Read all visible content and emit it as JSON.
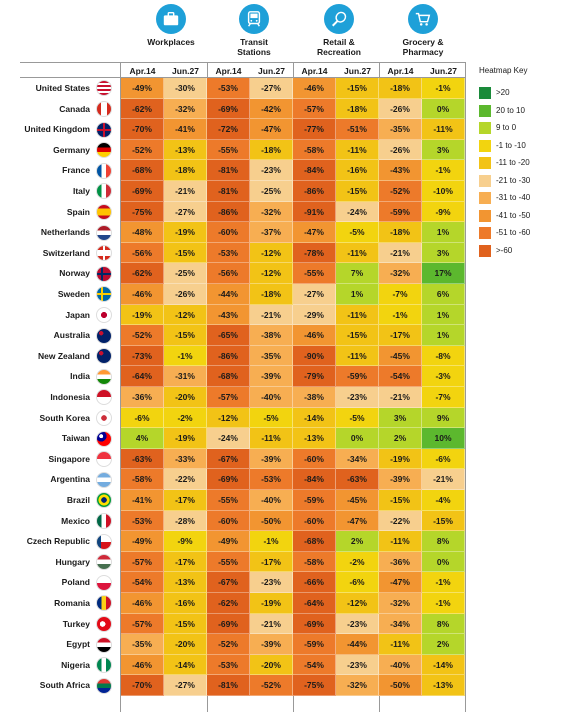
{
  "categories": [
    {
      "label_l1": "Workplaces",
      "label_l2": "",
      "icon": "briefcase-icon"
    },
    {
      "label_l1": "Transit",
      "label_l2": "Stations",
      "icon": "train-icon"
    },
    {
      "label_l1": "Retail &",
      "label_l2": "Recreation",
      "icon": "tennis-racket-icon"
    },
    {
      "label_l1": "Grocery &",
      "label_l2": "Pharmacy",
      "icon": "shopping-cart-icon"
    }
  ],
  "date_labels": [
    "Apr.14",
    "Jun.27"
  ],
  "legend": {
    "title": "Heatmap Key",
    "items": [
      {
        "label": ">20",
        "color": "#1a8a3a"
      },
      {
        "label": "20 to 10",
        "color": "#5cb82e"
      },
      {
        "label": "9 to 0",
        "color": "#b5d62a"
      },
      {
        "label": "-1 to -10",
        "color": "#f2d40f"
      },
      {
        "label": "-11 to -20",
        "color": "#f2c316"
      },
      {
        "label": "-21 to -30",
        "color": "#f7cf8e"
      },
      {
        "label": "-31 to -40",
        "color": "#f7ae52"
      },
      {
        "label": "-41 to -50",
        "color": "#f29531"
      },
      {
        "label": "-51 to -60",
        "color": "#ed7a2a"
      },
      {
        "label": ">-60",
        "color": "#e0621e"
      }
    ]
  },
  "chart_data": {
    "type": "heatmap",
    "columns": [
      "Workplaces Apr.14",
      "Workplaces Jun.27",
      "Transit Stations Apr.14",
      "Transit Stations Jun.27",
      "Retail & Recreation Apr.14",
      "Retail & Recreation Jun.27",
      "Grocery & Pharmacy Apr.14",
      "Grocery & Pharmacy Jun.27"
    ],
    "rows": [
      {
        "country": "United States",
        "flag": "us",
        "values": [
          -49,
          -30,
          -53,
          -27,
          -46,
          -15,
          -18,
          -1
        ]
      },
      {
        "country": "Canada",
        "flag": "ca",
        "values": [
          -62,
          -32,
          -69,
          -42,
          -57,
          -18,
          -26,
          0
        ]
      },
      {
        "country": "United Kingdom",
        "flag": "gb",
        "values": [
          -70,
          -41,
          -72,
          -47,
          -77,
          -51,
          -35,
          -11
        ]
      },
      {
        "country": "Germany",
        "flag": "de",
        "values": [
          -52,
          -13,
          -55,
          -18,
          -58,
          -11,
          -26,
          3
        ]
      },
      {
        "country": "France",
        "flag": "fr",
        "values": [
          -68,
          -18,
          -81,
          -23,
          -84,
          -16,
          -43,
          -1
        ]
      },
      {
        "country": "Italy",
        "flag": "it",
        "values": [
          -69,
          -21,
          -81,
          -25,
          -86,
          -15,
          -52,
          -10
        ]
      },
      {
        "country": "Spain",
        "flag": "es",
        "values": [
          -75,
          -27,
          -86,
          -32,
          -91,
          -24,
          -59,
          -9
        ]
      },
      {
        "country": "Netherlands",
        "flag": "nl",
        "values": [
          -48,
          -19,
          -60,
          -37,
          -47,
          -5,
          -18,
          1
        ]
      },
      {
        "country": "Switzerland",
        "flag": "ch",
        "values": [
          -56,
          -15,
          -53,
          -12,
          -78,
          -11,
          -21,
          3
        ]
      },
      {
        "country": "Norway",
        "flag": "no",
        "values": [
          -62,
          -25,
          -56,
          -12,
          -55,
          7,
          -32,
          17
        ]
      },
      {
        "country": "Sweden",
        "flag": "se",
        "values": [
          -46,
          -26,
          -44,
          -18,
          -27,
          1,
          -7,
          6
        ]
      },
      {
        "country": "Japan",
        "flag": "jp",
        "values": [
          -19,
          -12,
          -43,
          -21,
          -29,
          -11,
          -1,
          1
        ]
      },
      {
        "country": "Australia",
        "flag": "au",
        "values": [
          -52,
          -15,
          -65,
          -38,
          -46,
          -15,
          -17,
          1
        ]
      },
      {
        "country": "New Zealand",
        "flag": "nz",
        "values": [
          -73,
          -1,
          -86,
          -35,
          -90,
          -11,
          -45,
          -8
        ]
      },
      {
        "country": "India",
        "flag": "in",
        "values": [
          -64,
          -31,
          -68,
          -39,
          -79,
          -59,
          -54,
          -3
        ]
      },
      {
        "country": "Indonesia",
        "flag": "id",
        "values": [
          -36,
          -20,
          -57,
          -40,
          -38,
          -23,
          -21,
          -7
        ]
      },
      {
        "country": "South Korea",
        "flag": "kr",
        "values": [
          -6,
          -2,
          -12,
          -5,
          -14,
          -5,
          3,
          9
        ]
      },
      {
        "country": "Taiwan",
        "flag": "tw",
        "values": [
          4,
          -19,
          -24,
          -11,
          -13,
          0,
          2,
          10
        ]
      },
      {
        "country": "Singapore",
        "flag": "sg",
        "values": [
          -63,
          -33,
          -67,
          -39,
          -60,
          -34,
          -19,
          -6
        ]
      },
      {
        "country": "Argentina",
        "flag": "ar",
        "values": [
          -58,
          -22,
          -69,
          -53,
          -84,
          -63,
          -39,
          -21
        ]
      },
      {
        "country": "Brazil",
        "flag": "br",
        "values": [
          -41,
          -17,
          -55,
          -40,
          -59,
          -45,
          -15,
          -4
        ]
      },
      {
        "country": "Mexico",
        "flag": "mx",
        "values": [
          -53,
          -28,
          -60,
          -50,
          -60,
          -47,
          -22,
          -15
        ]
      },
      {
        "country": "Czech Republic",
        "flag": "cz",
        "values": [
          -49,
          -9,
          -49,
          -1,
          -68,
          2,
          -11,
          8
        ]
      },
      {
        "country": "Hungary",
        "flag": "hu",
        "values": [
          -57,
          -17,
          -55,
          -17,
          -58,
          -2,
          -36,
          0
        ]
      },
      {
        "country": "Poland",
        "flag": "pl",
        "values": [
          -54,
          -13,
          -67,
          -23,
          -66,
          -6,
          -47,
          -1
        ]
      },
      {
        "country": "Romania",
        "flag": "ro",
        "values": [
          -46,
          -16,
          -62,
          -19,
          -64,
          -12,
          -32,
          -1
        ]
      },
      {
        "country": "Turkey",
        "flag": "tr",
        "values": [
          -57,
          -15,
          -69,
          -21,
          -69,
          -23,
          -34,
          8
        ]
      },
      {
        "country": "Egypt",
        "flag": "eg",
        "values": [
          -35,
          -20,
          -52,
          -39,
          -59,
          -44,
          -11,
          2
        ]
      },
      {
        "country": "Nigeria",
        "flag": "ng",
        "values": [
          -46,
          -14,
          -53,
          -20,
          -54,
          -23,
          -40,
          -14
        ]
      },
      {
        "country": "South Africa",
        "flag": "za",
        "values": [
          -70,
          -27,
          -81,
          -52,
          -75,
          -32,
          -50,
          -13
        ]
      }
    ]
  }
}
